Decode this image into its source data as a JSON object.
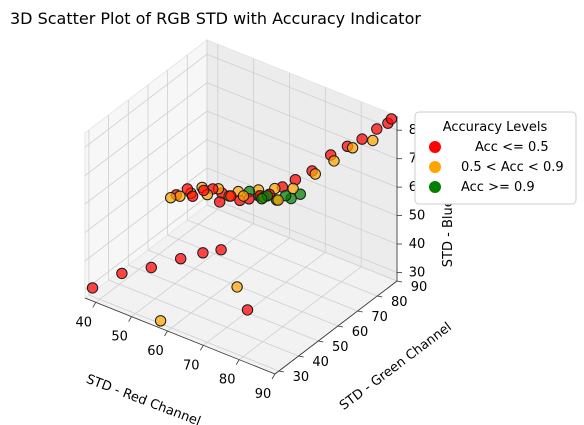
{
  "chart_data": {
    "type": "scatter",
    "title": "3D Scatter Plot of RGB STD with Accuracy Indicator",
    "xlabel": "STD - Red Channel",
    "ylabel": "STD - Green Channel",
    "zlabel": "STD - Blue Channel",
    "xlim": [
      37,
      90
    ],
    "ylim": [
      28,
      90
    ],
    "zlim": [
      27,
      85
    ],
    "xticks": [
      "40",
      "50",
      "60",
      "70",
      "80",
      "90"
    ],
    "yticks": [
      "30",
      "40",
      "50",
      "60",
      "70",
      "80",
      "90"
    ],
    "zticks": [
      "30",
      "40",
      "50",
      "60",
      "70",
      "80"
    ],
    "grid": true,
    "legend": {
      "title": "Accuracy Levels",
      "position": "right",
      "entries": [
        {
          "label": "Acc <= 0.5",
          "color": "#ff0000"
        },
        {
          "label": "0.5 < Acc < 0.9",
          "color": "#ffa500"
        },
        {
          "label": "Acc >= 0.9",
          "color": "#008000"
        }
      ]
    },
    "series": [
      {
        "name": "Acc <= 0.5",
        "color": "#ff0000",
        "points": [
          [
            38,
            30,
            30
          ],
          [
            44,
            34,
            36
          ],
          [
            50,
            38,
            39
          ],
          [
            56,
            42,
            43
          ],
          [
            60,
            46,
            45
          ],
          [
            64,
            48,
            47
          ],
          [
            73,
            45,
            32
          ],
          [
            46,
            58,
            52
          ],
          [
            48,
            60,
            54
          ],
          [
            50,
            59,
            53
          ],
          [
            52,
            61,
            55
          ],
          [
            54,
            62,
            56
          ],
          [
            56,
            63,
            55
          ],
          [
            57,
            60,
            54
          ],
          [
            59,
            62,
            56
          ],
          [
            61,
            63,
            55
          ],
          [
            63,
            64,
            56
          ],
          [
            65,
            66,
            57
          ],
          [
            67,
            67,
            58
          ],
          [
            69,
            70,
            60
          ],
          [
            71,
            73,
            62
          ],
          [
            74,
            76,
            65
          ],
          [
            77,
            80,
            70
          ],
          [
            80,
            83,
            73
          ],
          [
            83,
            85,
            76
          ],
          [
            86,
            87,
            80
          ],
          [
            88,
            89,
            82
          ],
          [
            89,
            89,
            84
          ]
        ]
      },
      {
        "name": "0.5 < Acc < 0.9",
        "color": "#ffa500",
        "points": [
          [
            57,
            30,
            28
          ],
          [
            69,
            47,
            37
          ],
          [
            45,
            57,
            51
          ],
          [
            47,
            58,
            52
          ],
          [
            49,
            60,
            53
          ],
          [
            51,
            62,
            55
          ],
          [
            53,
            61,
            54
          ],
          [
            55,
            63,
            56
          ],
          [
            58,
            63,
            55
          ],
          [
            60,
            64,
            57
          ],
          [
            62,
            63,
            57
          ],
          [
            64,
            67,
            58
          ],
          [
            66,
            66,
            57
          ],
          [
            68,
            68,
            60
          ],
          [
            70,
            66,
            58
          ],
          [
            72,
            70,
            61
          ],
          [
            76,
            74,
            66
          ],
          [
            79,
            78,
            70
          ],
          [
            82,
            82,
            74
          ],
          [
            86,
            85,
            77
          ]
        ]
      },
      {
        "name": "Acc >= 0.9",
        "color": "#008000",
        "points": [
          [
            62,
            66,
            57
          ],
          [
            64,
            67,
            56
          ],
          [
            66,
            65,
            57
          ],
          [
            67,
            66,
            58
          ],
          [
            69,
            67,
            57
          ],
          [
            71,
            68,
            59
          ],
          [
            72,
            69,
            58
          ],
          [
            74,
            70,
            60
          ]
        ]
      }
    ]
  }
}
